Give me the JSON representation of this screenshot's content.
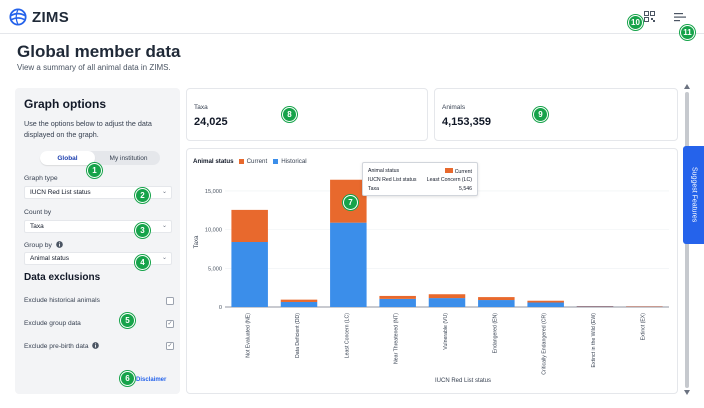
{
  "app": {
    "name": "ZIMS"
  },
  "header": {
    "title": "Global member data",
    "subtitle": "View a summary of all animal data in ZIMS."
  },
  "options": {
    "title": "Graph options",
    "description": "Use the options below to adjust the data displayed on the graph.",
    "toggle": {
      "global": "Global",
      "institution": "My institution",
      "selected": "Global"
    },
    "graph_type": {
      "label": "Graph type",
      "value": "IUCN Red List status"
    },
    "count_by": {
      "label": "Count by",
      "value": "Taxa"
    },
    "group_by": {
      "label": "Group by",
      "value": "Animal status"
    },
    "exclusions_title": "Data exclusions",
    "exclusions": [
      {
        "label": "Exclude historical animals",
        "checked": false
      },
      {
        "label": "Exclude group data",
        "checked": true
      },
      {
        "label": "Exclude pre-birth data",
        "checked": true
      }
    ],
    "disclaimer": "Disclaimer"
  },
  "stats": {
    "taxa": {
      "label": "Taxa",
      "value": "24,025"
    },
    "animals": {
      "label": "Animals",
      "value": "4,153,359"
    }
  },
  "markers": [
    "1",
    "2",
    "3",
    "4",
    "5",
    "6",
    "7",
    "8",
    "9",
    "10",
    "11"
  ],
  "suggest": "Suggest Features",
  "tooltip": {
    "title": "Animal status",
    "series": "Current",
    "category_label": "IUCN Red List status",
    "category": "Least Concern (LC)",
    "metric": "Taxa",
    "value": "5,546"
  },
  "colors": {
    "current": "#e8692d",
    "historical": "#3b8eea",
    "accent": "#2563eb",
    "badge": "#16a34a"
  },
  "chart_data": {
    "type": "bar",
    "stacked": true,
    "legend_title": "Animal status",
    "xlabel": "IUCN Red List status",
    "ylabel": "Taxa",
    "ylim": [
      0,
      16800
    ],
    "yticks": [
      "0",
      "5,000",
      "10,000",
      "15,000"
    ],
    "ytick_values": [
      0,
      5000,
      10000,
      15000
    ],
    "categories": [
      "Not Evaluated (NE)",
      "Data Deficient (DD)",
      "Least Concern (LC)",
      "Near Threatened (NT)",
      "Vulnerable (VU)",
      "Endangered (EN)",
      "Critically Endangered (CR)",
      "Extinct in the Wild (EW)",
      "Extinct (EX)"
    ],
    "series": [
      {
        "name": "Historical",
        "values": [
          8400,
          650,
          10900,
          1050,
          1150,
          900,
          580,
          90,
          70
        ]
      },
      {
        "name": "Current",
        "values": [
          4150,
          300,
          5546,
          380,
          500,
          380,
          230,
          30,
          20
        ]
      }
    ]
  }
}
